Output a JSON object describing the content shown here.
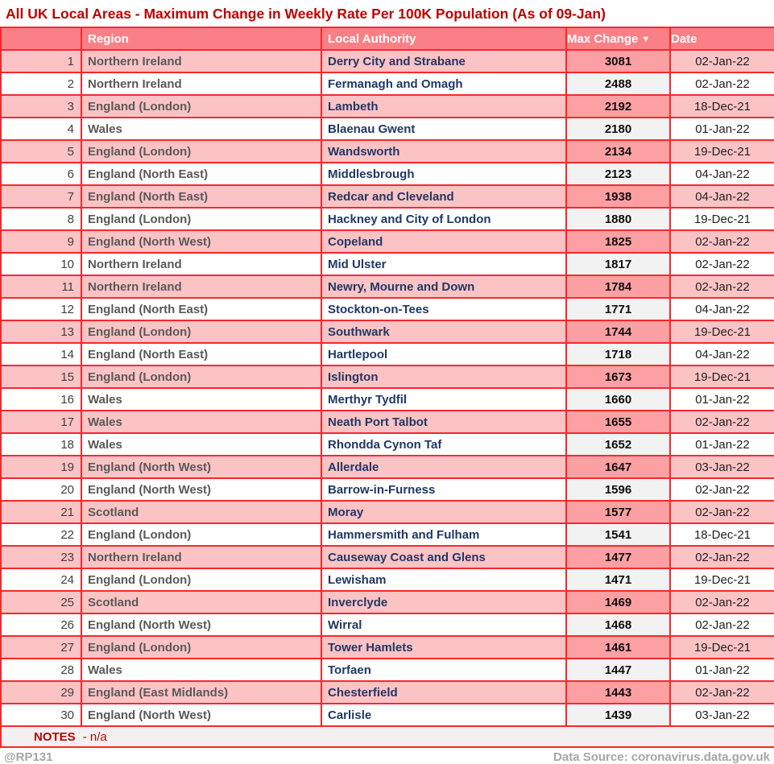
{
  "title": "All UK Local Areas - Maximum Change in Weekly Rate Per 100K Population (As of 09-Jan)",
  "chart_data": {
    "type": "table",
    "title": "All UK Local Areas - Maximum Change in Weekly Rate Per 100K Population (As of 09-Jan)",
    "columns": {
      "rank": "",
      "region": "Region",
      "local_authority": "Local Authority",
      "max_change": "Max Change",
      "date": "Date"
    },
    "sort": {
      "column": "max_change",
      "direction": "desc",
      "icon": "▼"
    },
    "rows": [
      {
        "rank": 1,
        "region": "Northern Ireland",
        "local_authority": "Derry City and Strabane",
        "max_change": 3081,
        "date": "02-Jan-22"
      },
      {
        "rank": 2,
        "region": "Northern Ireland",
        "local_authority": "Fermanagh and Omagh",
        "max_change": 2488,
        "date": "02-Jan-22"
      },
      {
        "rank": 3,
        "region": "England (London)",
        "local_authority": "Lambeth",
        "max_change": 2192,
        "date": "18-Dec-21"
      },
      {
        "rank": 4,
        "region": "Wales",
        "local_authority": "Blaenau Gwent",
        "max_change": 2180,
        "date": "01-Jan-22"
      },
      {
        "rank": 5,
        "region": "England (London)",
        "local_authority": "Wandsworth",
        "max_change": 2134,
        "date": "19-Dec-21"
      },
      {
        "rank": 6,
        "region": "England (North East)",
        "local_authority": "Middlesbrough",
        "max_change": 2123,
        "date": "04-Jan-22"
      },
      {
        "rank": 7,
        "region": "England (North East)",
        "local_authority": "Redcar and Cleveland",
        "max_change": 1938,
        "date": "04-Jan-22"
      },
      {
        "rank": 8,
        "region": "England (London)",
        "local_authority": "Hackney and City of London",
        "max_change": 1880,
        "date": "19-Dec-21"
      },
      {
        "rank": 9,
        "region": "England (North West)",
        "local_authority": "Copeland",
        "max_change": 1825,
        "date": "02-Jan-22"
      },
      {
        "rank": 10,
        "region": "Northern Ireland",
        "local_authority": "Mid Ulster",
        "max_change": 1817,
        "date": "02-Jan-22"
      },
      {
        "rank": 11,
        "region": "Northern Ireland",
        "local_authority": "Newry, Mourne and Down",
        "max_change": 1784,
        "date": "02-Jan-22"
      },
      {
        "rank": 12,
        "region": "England (North East)",
        "local_authority": "Stockton-on-Tees",
        "max_change": 1771,
        "date": "04-Jan-22"
      },
      {
        "rank": 13,
        "region": "England (London)",
        "local_authority": "Southwark",
        "max_change": 1744,
        "date": "19-Dec-21"
      },
      {
        "rank": 14,
        "region": "England (North East)",
        "local_authority": "Hartlepool",
        "max_change": 1718,
        "date": "04-Jan-22"
      },
      {
        "rank": 15,
        "region": "England (London)",
        "local_authority": "Islington",
        "max_change": 1673,
        "date": "19-Dec-21"
      },
      {
        "rank": 16,
        "region": "Wales",
        "local_authority": "Merthyr Tydfil",
        "max_change": 1660,
        "date": "01-Jan-22"
      },
      {
        "rank": 17,
        "region": "Wales",
        "local_authority": "Neath Port Talbot",
        "max_change": 1655,
        "date": "02-Jan-22"
      },
      {
        "rank": 18,
        "region": "Wales",
        "local_authority": "Rhondda Cynon Taf",
        "max_change": 1652,
        "date": "01-Jan-22"
      },
      {
        "rank": 19,
        "region": "England (North West)",
        "local_authority": "Allerdale",
        "max_change": 1647,
        "date": "03-Jan-22"
      },
      {
        "rank": 20,
        "region": "England (North West)",
        "local_authority": "Barrow-in-Furness",
        "max_change": 1596,
        "date": "02-Jan-22"
      },
      {
        "rank": 21,
        "region": "Scotland",
        "local_authority": "Moray",
        "max_change": 1577,
        "date": "02-Jan-22"
      },
      {
        "rank": 22,
        "region": "England (London)",
        "local_authority": "Hammersmith and Fulham",
        "max_change": 1541,
        "date": "18-Dec-21"
      },
      {
        "rank": 23,
        "region": "Northern Ireland",
        "local_authority": "Causeway Coast and Glens",
        "max_change": 1477,
        "date": "02-Jan-22"
      },
      {
        "rank": 24,
        "region": "England (London)",
        "local_authority": "Lewisham",
        "max_change": 1471,
        "date": "19-Dec-21"
      },
      {
        "rank": 25,
        "region": "Scotland",
        "local_authority": "Inverclyde",
        "max_change": 1469,
        "date": "02-Jan-22"
      },
      {
        "rank": 26,
        "region": "England (North West)",
        "local_authority": "Wirral",
        "max_change": 1468,
        "date": "02-Jan-22"
      },
      {
        "rank": 27,
        "region": "England (London)",
        "local_authority": "Tower Hamlets",
        "max_change": 1461,
        "date": "19-Dec-21"
      },
      {
        "rank": 28,
        "region": "Wales",
        "local_authority": "Torfaen",
        "max_change": 1447,
        "date": "01-Jan-22"
      },
      {
        "rank": 29,
        "region": "England (East Midlands)",
        "local_authority": "Chesterfield",
        "max_change": 1443,
        "date": "02-Jan-22"
      },
      {
        "rank": 30,
        "region": "England (North West)",
        "local_authority": "Carlisle",
        "max_change": 1439,
        "date": "03-Jan-22"
      }
    ]
  },
  "notes": {
    "label": "NOTES",
    "text": "- n/a"
  },
  "footer": {
    "credit": "@RP131",
    "source": "Data Source: coronavirus.data.gov.uk"
  },
  "colors": {
    "title_text": "#C00000",
    "header_bg": "#FB8085",
    "header_text": "#FFFFFF",
    "row_pink": "#FCC3C5",
    "max_cell_pink": "#FCA0A3",
    "row_white": "#FFFFFF",
    "max_cell_gray": "#F2F2F2",
    "grid_border": "#F9272B",
    "region_text": "#595959",
    "local_authority_text": "#203864",
    "notes_bg": "#F2F0F0",
    "notes_text": "#C00000",
    "footer_text": "#A6A6A6"
  }
}
